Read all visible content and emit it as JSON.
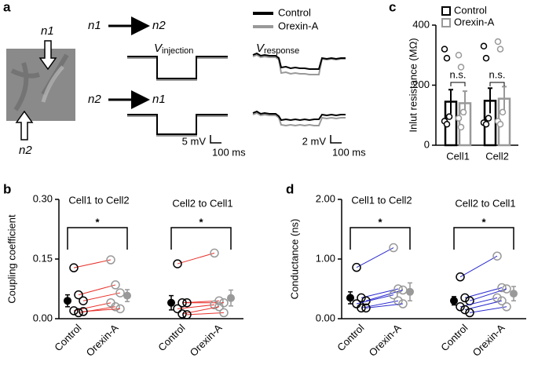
{
  "panel_a": {
    "label": "a",
    "neuron_top": "n1",
    "neuron_bottom": "n2",
    "rows": [
      {
        "from": "n1",
        "to": "n2"
      },
      {
        "from": "n2",
        "to": "n1"
      }
    ],
    "traces": [
      {
        "symbol": "V",
        "subscript": "injection"
      },
      {
        "symbol": "V",
        "subscript": "response"
      }
    ],
    "legend": [
      {
        "name": "Control",
        "color": "#000000"
      },
      {
        "name": "Orexin-A",
        "color": "#999999"
      }
    ],
    "scale_bars": [
      {
        "y": "5 mV",
        "x": "100 ms"
      },
      {
        "y": "2 mV",
        "x": "100 ms"
      }
    ]
  },
  "chart_data": [
    {
      "label": "c",
      "type": "bar",
      "ylabel": "Inlut resistance (MΩ)",
      "categories": [
        "Cell1",
        "Cell2"
      ],
      "ylim": [
        0,
        400
      ],
      "yticks": [
        0,
        200,
        400
      ],
      "annotations": [
        "n.s.",
        "n.s."
      ],
      "series": [
        {
          "name": "Control",
          "color": "#000000",
          "values": [
            145,
            148
          ],
          "errors": [
            40,
            42
          ],
          "points": [
            [
              320,
              290,
              95,
              80,
              70
            ],
            [
              330,
              290,
              90,
              75,
              70
            ]
          ]
        },
        {
          "name": "Orexin-A",
          "color": "#999999",
          "values": [
            140,
            155
          ],
          "errors": [
            40,
            40
          ],
          "points": [
            [
              300,
              260,
              110,
              90,
              60
            ],
            [
              345,
              320,
              110,
              80,
              70
            ]
          ]
        }
      ]
    },
    {
      "label": "b",
      "type": "paired",
      "ylabel": "Coupling coefficient",
      "line_color": "#e8312a",
      "ylim": [
        0,
        0.3
      ],
      "yticks": [
        {
          "value": 0,
          "label": "0.00"
        },
        {
          "value": 0.15,
          "label": "0.15"
        },
        {
          "value": 0.3,
          "label": "0.30"
        }
      ],
      "colors": [
        "#000000",
        "#999999"
      ],
      "groups": [
        {
          "title": "Cell1 to Cell2",
          "annotation": "*",
          "categories": [
            "Control",
            "Orexin-A"
          ],
          "control": [
            0.128,
            0.06,
            0.045,
            0.02,
            0.015,
            0.018
          ],
          "treated": [
            0.148,
            0.085,
            0.065,
            0.04,
            0.03,
            0.025
          ],
          "means": [
            0.045,
            0.058
          ],
          "errors": [
            0.015,
            0.015
          ]
        },
        {
          "title": "Cell2 to Cell1",
          "annotation": "*",
          "categories": [
            "Control",
            "Orexin-A"
          ],
          "control": [
            0.138,
            0.04,
            0.04,
            0.025,
            0.012,
            0.01
          ],
          "treated": [
            0.165,
            0.045,
            0.04,
            0.035,
            0.03,
            0.015
          ],
          "means": [
            0.04,
            0.052
          ],
          "errors": [
            0.018,
            0.02
          ]
        }
      ]
    },
    {
      "label": "d",
      "type": "paired",
      "ylabel": "Conductance (ns)",
      "line_color": "#2b2bd0",
      "ylim": [
        0,
        2
      ],
      "yticks": [
        {
          "value": 0,
          "label": "0.00"
        },
        {
          "value": 1,
          "label": "1.00"
        },
        {
          "value": 2,
          "label": "2.00"
        }
      ],
      "colors": [
        "#000000",
        "#999999"
      ],
      "groups": [
        {
          "title": "Cell1 to Cell2",
          "annotation": "*",
          "categories": [
            "Control",
            "Orexin-A"
          ],
          "control": [
            0.86,
            0.35,
            0.3,
            0.25,
            0.18,
            0.18
          ],
          "treated": [
            1.19,
            0.5,
            0.48,
            0.4,
            0.3,
            0.25
          ],
          "means": [
            0.35,
            0.45
          ],
          "errors": [
            0.1,
            0.15
          ]
        },
        {
          "title": "Cell2 to Cell1",
          "annotation": "*",
          "categories": [
            "Control",
            "Orexin-A"
          ],
          "control": [
            0.7,
            0.35,
            0.3,
            0.2,
            0.15,
            0.1
          ],
          "treated": [
            1.05,
            0.52,
            0.5,
            0.35,
            0.3,
            0.2
          ],
          "means": [
            0.3,
            0.42
          ],
          "errors": [
            0.07,
            0.12
          ]
        }
      ]
    }
  ]
}
